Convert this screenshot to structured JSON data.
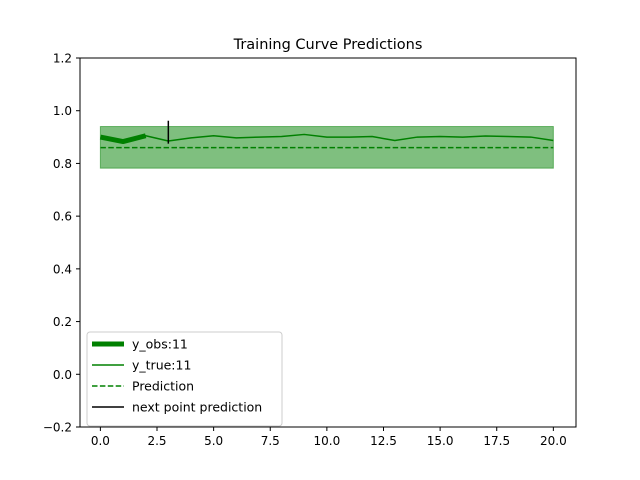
{
  "chart_data": {
    "type": "line",
    "title": "Training Curve Predictions",
    "xlabel": "",
    "ylabel": "",
    "xlim": [
      -0.9,
      21
    ],
    "ylim": [
      -0.2,
      1.2
    ],
    "x_ticks": [
      0.0,
      2.5,
      5.0,
      7.5,
      10.0,
      12.5,
      15.0,
      17.5,
      20.0
    ],
    "x_tick_labels": [
      "0.0",
      "2.5",
      "5.0",
      "7.5",
      "10.0",
      "12.5",
      "15.0",
      "17.5",
      "20.0"
    ],
    "y_ticks": [
      -0.2,
      0.0,
      0.2,
      0.4,
      0.6,
      0.8,
      1.0,
      1.2
    ],
    "y_tick_labels": [
      "−0.2",
      "0.0",
      "0.2",
      "0.4",
      "0.6",
      "0.8",
      "1.0",
      "1.2"
    ],
    "grid": false,
    "legend_position": "lower-left",
    "series": [
      {
        "name": "y_obs:11",
        "style": "thick-solid",
        "color": "#008000",
        "x": [
          0,
          1,
          2
        ],
        "y": [
          0.9,
          0.883,
          0.905
        ]
      },
      {
        "name": "y_true:11",
        "style": "solid",
        "color": "#008000",
        "x": [
          0,
          1,
          2,
          3,
          4,
          5,
          6,
          7,
          8,
          9,
          10,
          11,
          12,
          13,
          14,
          15,
          16,
          17,
          18,
          19,
          20
        ],
        "y": [
          0.9,
          0.883,
          0.905,
          0.885,
          0.897,
          0.905,
          0.897,
          0.9,
          0.902,
          0.91,
          0.9,
          0.9,
          0.902,
          0.887,
          0.9,
          0.902,
          0.9,
          0.904,
          0.902,
          0.9,
          0.887
        ]
      },
      {
        "name": "Prediction",
        "style": "dashed",
        "color": "#008000",
        "x": [
          0,
          20
        ],
        "y": [
          0.86,
          0.86
        ]
      }
    ],
    "prediction_band": {
      "x": [
        0,
        20
      ],
      "lower": 0.782,
      "upper": 0.94,
      "color": "#008000"
    },
    "next_point_prediction": {
      "name": "next point prediction",
      "x": 3,
      "y_low": 0.875,
      "y_high": 0.962,
      "color": "#000000"
    }
  }
}
